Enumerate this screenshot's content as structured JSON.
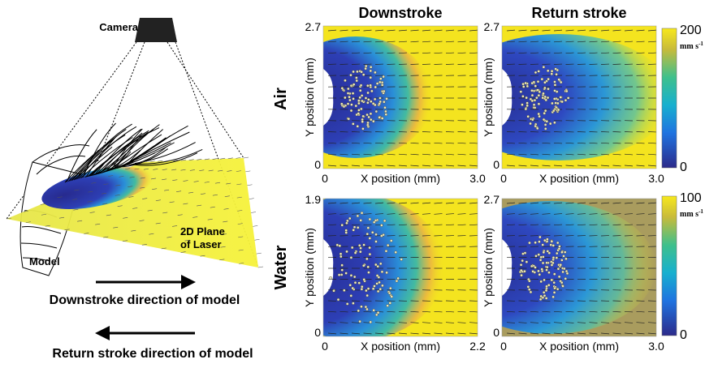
{
  "left": {
    "camera": "Camera",
    "laser_line1": "2D Plane",
    "laser_line2": "of Laser",
    "model": "Model",
    "downstroke": "Downstroke direction of model",
    "return_stroke": "Return stroke direction of model"
  },
  "columns": [
    "Downstroke",
    "Return stroke"
  ],
  "rows": [
    "Air",
    "Water"
  ],
  "panels": [
    {
      "xlabel": "X position (mm)",
      "ylabel": "Y position (mm)",
      "ymax": "2.7",
      "ymin": "0",
      "xmin": "0",
      "xmax": "3.0"
    },
    {
      "xlabel": "X position (mm)",
      "ylabel": "Y position (mm)",
      "ymax": "2.7",
      "ymin": "0",
      "xmin": "0",
      "xmax": "3.0"
    },
    {
      "xlabel": "X position (mm)",
      "ylabel": "Y position (mm)",
      "ymax": "1.9",
      "ymin": "0",
      "xmin": "0",
      "xmax": "2.2"
    },
    {
      "xlabel": "X position (mm)",
      "ylabel": "Y position (mm)",
      "ymax": "2.7",
      "ymin": "0",
      "xmin": "0",
      "xmax": "3.0"
    }
  ],
  "colorbars": [
    {
      "max": "200",
      "min": "0",
      "unit": "mm s",
      "unit_exp": "-1"
    },
    {
      "max": "100",
      "min": "0",
      "unit": "mm s",
      "unit_exp": "-1"
    }
  ]
}
